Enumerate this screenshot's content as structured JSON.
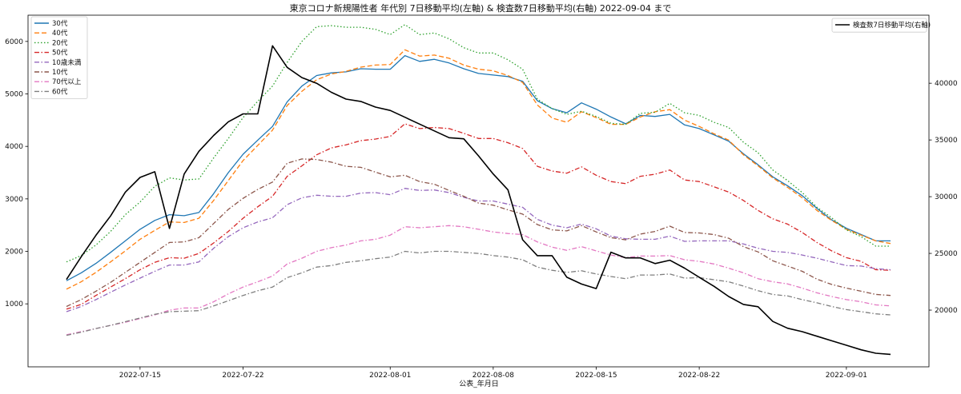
{
  "chart_data": {
    "type": "line",
    "title": "東京コロナ新規陽性者 年代別 7日移動平均(左軸) & 検査数7日移動平均(右軸) 2022-09-04 まで",
    "xlabel": "公表_年月日",
    "ylabel": "",
    "x_dates": [
      "2022-07-10",
      "2022-07-11",
      "2022-07-12",
      "2022-07-13",
      "2022-07-14",
      "2022-07-15",
      "2022-07-16",
      "2022-07-17",
      "2022-07-18",
      "2022-07-19",
      "2022-07-20",
      "2022-07-21",
      "2022-07-22",
      "2022-07-23",
      "2022-07-24",
      "2022-07-25",
      "2022-07-26",
      "2022-07-27",
      "2022-07-28",
      "2022-07-29",
      "2022-07-30",
      "2022-07-31",
      "2022-08-01",
      "2022-08-02",
      "2022-08-03",
      "2022-08-04",
      "2022-08-05",
      "2022-08-06",
      "2022-08-07",
      "2022-08-08",
      "2022-08-09",
      "2022-08-10",
      "2022-08-11",
      "2022-08-12",
      "2022-08-13",
      "2022-08-14",
      "2022-08-15",
      "2022-08-16",
      "2022-08-17",
      "2022-08-18",
      "2022-08-19",
      "2022-08-20",
      "2022-08-21",
      "2022-08-22",
      "2022-08-23",
      "2022-08-24",
      "2022-08-25",
      "2022-08-26",
      "2022-08-27",
      "2022-08-28",
      "2022-08-29",
      "2022-08-30",
      "2022-08-31",
      "2022-09-01",
      "2022-09-02",
      "2022-09-03",
      "2022-09-04"
    ],
    "x_ticks": [
      "2022-07-15",
      "2022-07-22",
      "2022-08-01",
      "2022-08-08",
      "2022-08-15",
      "2022-08-22",
      "2022-09-01"
    ],
    "y_left": {
      "ylim": [
        -200,
        6500
      ],
      "ticks": [
        1000,
        2000,
        3000,
        4000,
        5000,
        6000
      ]
    },
    "y_right": {
      "ylim": [
        15000,
        46000
      ],
      "ticks": [
        20000,
        25000,
        30000,
        35000,
        40000
      ]
    },
    "grid": false,
    "legend_left": {
      "placement": "upper-left"
    },
    "legend_right": {
      "placement": "upper-right"
    },
    "series": [
      {
        "name": "30代",
        "axis": "left",
        "style": "solid",
        "color": "#1f77b4",
        "values": [
          1440,
          1590,
          1770,
          1980,
          2200,
          2420,
          2590,
          2700,
          2680,
          2740,
          3100,
          3500,
          3850,
          4120,
          4380,
          4850,
          5150,
          5350,
          5400,
          5420,
          5480,
          5470,
          5470,
          5730,
          5620,
          5660,
          5590,
          5480,
          5390,
          5360,
          5330,
          5240,
          4870,
          4720,
          4640,
          4830,
          4710,
          4560,
          4430,
          4590,
          4570,
          4610,
          4410,
          4340,
          4220,
          4100,
          3860,
          3650,
          3420,
          3250,
          3060,
          2820,
          2600,
          2440,
          2320,
          2200,
          2200
        ]
      },
      {
        "name": "40代",
        "axis": "left",
        "style": "dashed",
        "color": "#ff7f0e",
        "values": [
          1280,
          1420,
          1600,
          1800,
          2010,
          2230,
          2400,
          2560,
          2550,
          2630,
          2970,
          3350,
          3730,
          4020,
          4310,
          4780,
          5050,
          5270,
          5380,
          5430,
          5510,
          5550,
          5560,
          5840,
          5720,
          5740,
          5680,
          5550,
          5470,
          5440,
          5350,
          5220,
          4790,
          4540,
          4460,
          4660,
          4550,
          4420,
          4420,
          4560,
          4660,
          4700,
          4500,
          4380,
          4240,
          4120,
          3840,
          3630,
          3400,
          3220,
          3020,
          2780,
          2590,
          2420,
          2310,
          2200,
          2150
        ]
      },
      {
        "name": "20代",
        "axis": "left",
        "style": "dotted",
        "color": "#2ca02c",
        "values": [
          1800,
          1920,
          2120,
          2380,
          2700,
          2940,
          3240,
          3400,
          3360,
          3380,
          3780,
          4150,
          4550,
          4860,
          5150,
          5600,
          6000,
          6280,
          6300,
          6270,
          6270,
          6230,
          6130,
          6320,
          6130,
          6160,
          6050,
          5880,
          5780,
          5780,
          5650,
          5470,
          4900,
          4720,
          4610,
          4670,
          4570,
          4440,
          4420,
          4630,
          4650,
          4820,
          4640,
          4590,
          4460,
          4360,
          4080,
          3880,
          3550,
          3350,
          3120,
          2840,
          2640,
          2410,
          2280,
          2100,
          2100
        ]
      },
      {
        "name": "50代",
        "axis": "left",
        "style": "dashdot",
        "color": "#d62728",
        "values": [
          900,
          990,
          1160,
          1320,
          1480,
          1650,
          1790,
          1880,
          1870,
          1960,
          2160,
          2380,
          2630,
          2850,
          3050,
          3430,
          3630,
          3840,
          3970,
          4030,
          4110,
          4140,
          4190,
          4430,
          4340,
          4360,
          4340,
          4250,
          4150,
          4150,
          4070,
          3960,
          3620,
          3530,
          3490,
          3610,
          3450,
          3330,
          3290,
          3430,
          3470,
          3550,
          3360,
          3330,
          3230,
          3130,
          2970,
          2780,
          2620,
          2520,
          2360,
          2170,
          2010,
          1880,
          1810,
          1650,
          1640
        ]
      },
      {
        "name": "10歳未満",
        "axis": "left",
        "style": "dashdot",
        "color": "#9467bd",
        "values": [
          850,
          950,
          1080,
          1220,
          1360,
          1490,
          1620,
          1740,
          1740,
          1800,
          2060,
          2280,
          2450,
          2560,
          2640,
          2890,
          3020,
          3070,
          3050,
          3050,
          3110,
          3120,
          3080,
          3200,
          3160,
          3170,
          3120,
          3030,
          2960,
          2960,
          2900,
          2840,
          2610,
          2500,
          2450,
          2520,
          2430,
          2290,
          2240,
          2230,
          2230,
          2290,
          2190,
          2200,
          2200,
          2200,
          2140,
          2060,
          2000,
          1980,
          1930,
          1870,
          1800,
          1730,
          1720,
          1670,
          1650
        ]
      },
      {
        "name": "10代",
        "axis": "left",
        "style": "dashdot",
        "color": "#8c564b",
        "values": [
          950,
          1080,
          1240,
          1410,
          1600,
          1790,
          1980,
          2170,
          2180,
          2260,
          2530,
          2800,
          3010,
          3180,
          3320,
          3680,
          3760,
          3750,
          3700,
          3620,
          3600,
          3510,
          3420,
          3450,
          3330,
          3280,
          3160,
          3050,
          2920,
          2880,
          2790,
          2710,
          2510,
          2410,
          2390,
          2490,
          2370,
          2260,
          2220,
          2330,
          2380,
          2480,
          2360,
          2350,
          2320,
          2250,
          2090,
          1990,
          1820,
          1720,
          1620,
          1470,
          1370,
          1300,
          1240,
          1180,
          1160
        ]
      },
      {
        "name": "70代以上",
        "axis": "left",
        "style": "dashdot",
        "color": "#e377c2",
        "values": [
          410,
          470,
          530,
          590,
          650,
          720,
          790,
          880,
          920,
          920,
          1040,
          1190,
          1320,
          1420,
          1530,
          1760,
          1870,
          2000,
          2070,
          2120,
          2200,
          2230,
          2310,
          2470,
          2450,
          2470,
          2490,
          2470,
          2420,
          2370,
          2340,
          2320,
          2180,
          2080,
          2020,
          2090,
          2010,
          1930,
          1880,
          1910,
          1910,
          1920,
          1840,
          1810,
          1760,
          1680,
          1590,
          1480,
          1420,
          1380,
          1300,
          1210,
          1140,
          1080,
          1040,
          980,
          960
        ]
      },
      {
        "name": "60代",
        "axis": "left",
        "style": "dashdot",
        "color": "#7f7f7f",
        "values": [
          400,
          460,
          530,
          590,
          660,
          730,
          800,
          850,
          860,
          870,
          960,
          1060,
          1160,
          1250,
          1320,
          1500,
          1590,
          1700,
          1730,
          1790,
          1820,
          1860,
          1890,
          2000,
          1970,
          2000,
          2000,
          1980,
          1960,
          1920,
          1890,
          1840,
          1700,
          1640,
          1600,
          1630,
          1570,
          1520,
          1480,
          1550,
          1550,
          1570,
          1490,
          1500,
          1460,
          1420,
          1340,
          1250,
          1180,
          1150,
          1080,
          1020,
          950,
          890,
          850,
          810,
          790
        ]
      },
      {
        "name": "検査数7日移動平均(右軸)",
        "axis": "right",
        "style": "solid",
        "color": "#000000",
        "values": [
          22700,
          24700,
          26600,
          28300,
          30400,
          31700,
          32200,
          27200,
          32000,
          34000,
          35400,
          36600,
          37300,
          37300,
          43300,
          41400,
          40500,
          40000,
          39200,
          38600,
          38400,
          37900,
          37600,
          37000,
          36400,
          35800,
          35200,
          35100,
          33600,
          32000,
          30600,
          26200,
          24800,
          24800,
          22900,
          22300,
          21900,
          25100,
          24600,
          24600,
          24100,
          24400,
          23700,
          22900,
          22100,
          21200,
          20500,
          20300,
          19000,
          18400,
          18100,
          17700,
          17300,
          16900,
          16500,
          16200,
          16100
        ]
      }
    ]
  }
}
